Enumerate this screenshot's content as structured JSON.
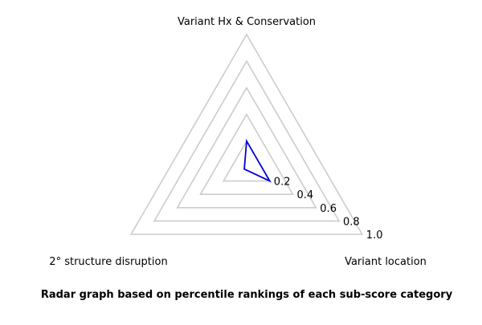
{
  "chart_data": {
    "type": "radar",
    "axes": [
      "Variant Hx & Conservation",
      "Variant location",
      "2° structure disruption"
    ],
    "series": [
      {
        "values": [
          0.2,
          0.2,
          0.02
        ]
      }
    ],
    "rlim": [
      0,
      1.0
    ],
    "ticks": [
      0.2,
      0.4,
      0.6,
      0.8,
      1.0
    ],
    "tick_labels": [
      "0.2",
      "0.4",
      "0.6",
      "0.8",
      "1.0"
    ],
    "grid": true,
    "caption": "Radar graph based on percentile rankings of each sub-score category"
  },
  "colors": {
    "grid": "#cccccc",
    "series": "#0000dd"
  }
}
